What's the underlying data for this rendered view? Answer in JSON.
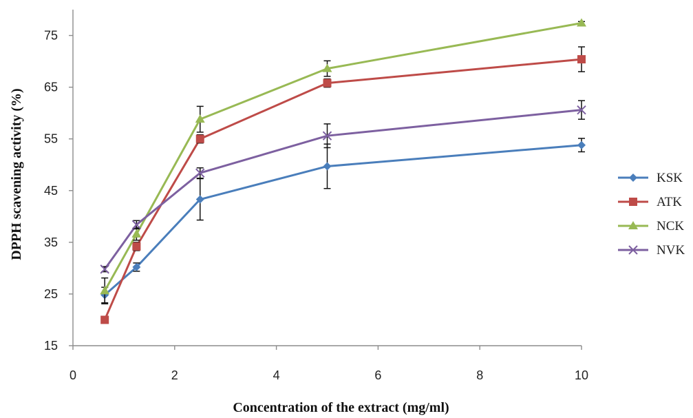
{
  "chart_data": {
    "type": "line",
    "title": "",
    "xlabel": "Concentration of the extract (mg/ml)",
    "ylabel": "DPPH scavening activity (%)",
    "xlim": [
      0,
      10
    ],
    "ylim": [
      15,
      80
    ],
    "x_ticks": [
      0,
      2,
      4,
      6,
      8,
      10
    ],
    "y_ticks": [
      15,
      25,
      35,
      45,
      55,
      65,
      75
    ],
    "x": [
      0.625,
      1.25,
      2.5,
      5,
      10
    ],
    "grid": false,
    "legend_position": "right",
    "series": [
      {
        "name": "KSK",
        "color": "#4a7ebb",
        "marker": "diamond",
        "values": [
          24.8,
          30.2,
          43.3,
          49.7,
          53.8
        ],
        "errors": [
          1.5,
          0.8,
          4.0,
          4.3,
          1.3
        ]
      },
      {
        "name": "ATK",
        "color": "#be4b48",
        "marker": "square",
        "values": [
          20.0,
          34.2,
          55.0,
          65.8,
          70.4
        ],
        "errors": [
          0.5,
          0.8,
          0.8,
          0.8,
          2.4
        ]
      },
      {
        "name": "NCK",
        "color": "#98b954",
        "marker": "triangle",
        "values": [
          25.6,
          36.6,
          58.8,
          68.6,
          77.4
        ],
        "errors": [
          2.5,
          1.2,
          2.5,
          1.5,
          0.3
        ]
      },
      {
        "name": "NVK",
        "color": "#7d60a0",
        "marker": "x",
        "values": [
          29.8,
          38.4,
          48.4,
          55.6,
          60.6
        ],
        "errors": [
          0.5,
          0.8,
          1.0,
          2.3,
          1.8
        ]
      }
    ]
  }
}
